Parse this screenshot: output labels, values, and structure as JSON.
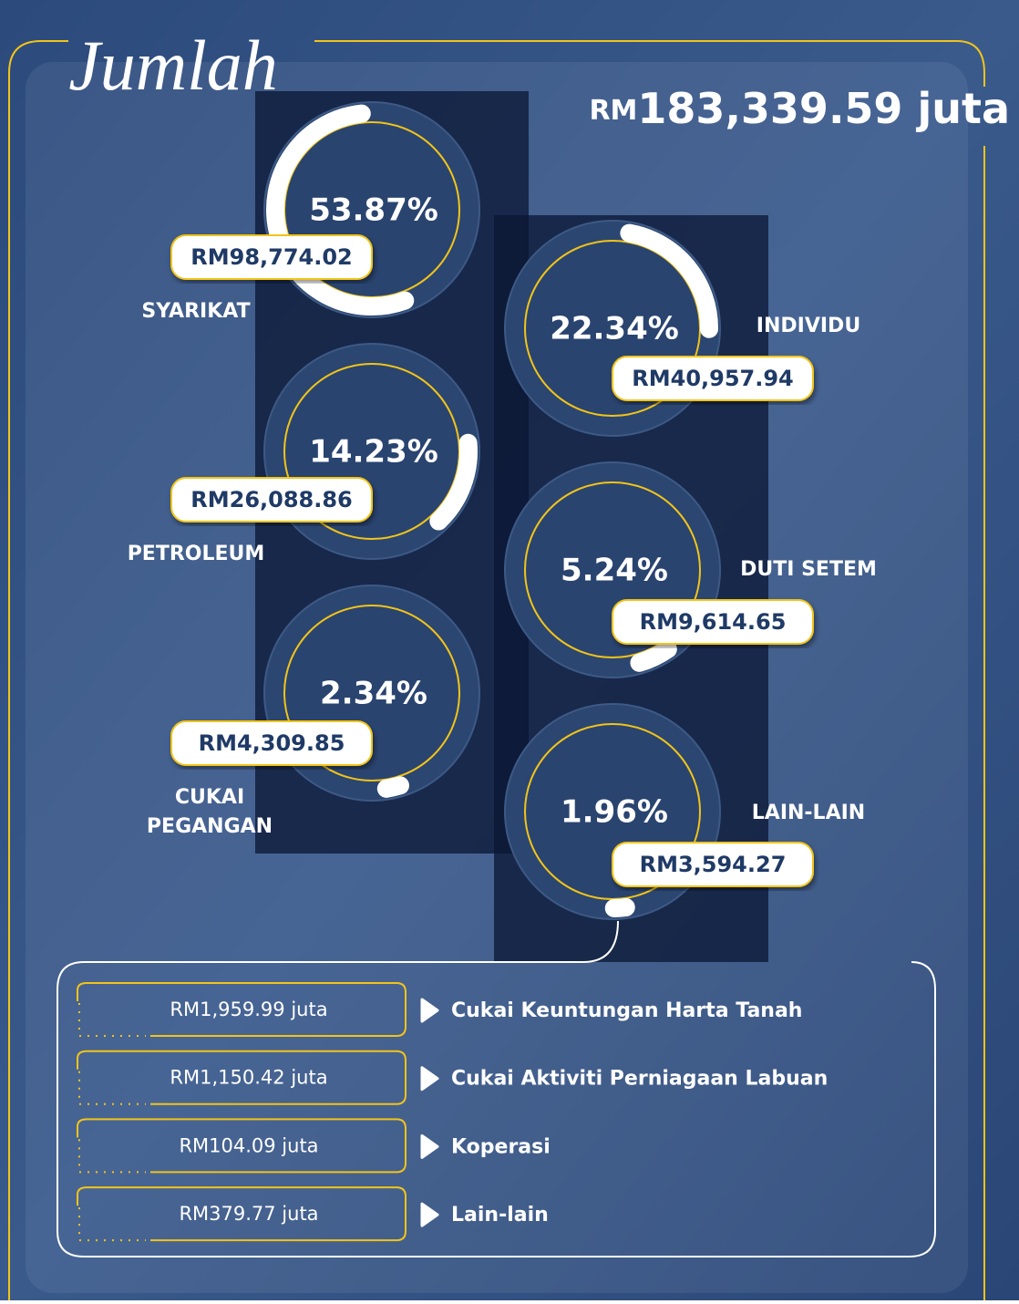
{
  "header": {
    "title": "Jumlah",
    "total": {
      "prefix": "RM",
      "amount": "183,339.59 juta"
    }
  },
  "gauges": [
    {
      "name_lines": [
        "SYARIKAT"
      ],
      "percent": 53.87,
      "percent_label": "53.87%",
      "amount": "RM98,774.02"
    },
    {
      "name_lines": [
        "INDIVIDU"
      ],
      "percent": 22.34,
      "percent_label": "22.34%",
      "amount": "RM40,957.94"
    },
    {
      "name_lines": [
        "PETROLEUM"
      ],
      "percent": 14.23,
      "percent_label": "14.23%",
      "amount": "RM26,088.86"
    },
    {
      "name_lines": [
        "DUTI SETEM"
      ],
      "percent": 5.24,
      "percent_label": "5.24%",
      "amount": "RM9,614.65"
    },
    {
      "name_lines": [
        "CUKAI",
        "PEGANGAN"
      ],
      "percent": 2.34,
      "percent_label": "2.34%",
      "amount": "RM4,309.85"
    },
    {
      "name_lines": [
        "LAIN-LAIN"
      ],
      "percent": 1.96,
      "percent_label": "1.96%",
      "amount": "RM3,594.27"
    }
  ],
  "breakdown": [
    {
      "amount": "RM1,959.99 juta",
      "label": "Cukai Keuntungan Harta Tanah"
    },
    {
      "amount": "RM1,150.42 juta",
      "label": "Cukai Aktiviti Perniagaan Labuan"
    },
    {
      "amount": "RM104.09 juta",
      "label": "Koperasi"
    },
    {
      "amount": "RM379.77 juta",
      "label": "Lain-lain"
    }
  ]
}
